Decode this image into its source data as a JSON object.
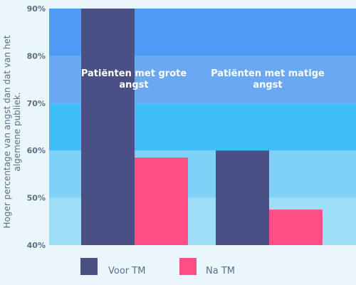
{
  "chart_data": {
    "type": "bar",
    "categories": [
      "Patiënten met grote angst",
      "Patiënten met matige angst"
    ],
    "category_lines": [
      [
        "Patiënten met grote",
        "angst"
      ],
      [
        "Patiënten met matige",
        "angst"
      ]
    ],
    "series": [
      {
        "name": "Voor TM",
        "values": [
          90,
          60
        ],
        "color": "#4a5083"
      },
      {
        "name": "Na TM",
        "values": [
          58.5,
          47.5
        ],
        "color": "#ff4d86"
      }
    ],
    "ylabel_lines": [
      "Hoger percentage van angst dan dat van het",
      "algemene publiek."
    ],
    "ylim": [
      40,
      90
    ],
    "yticks": [
      40,
      50,
      60,
      70,
      80,
      90
    ],
    "ytick_labels": [
      "40%",
      "50%",
      "60%",
      "70%",
      "80%",
      "90%"
    ],
    "band_colors": [
      "#9fdff6",
      "#7fd2f7",
      "#3dbef6",
      "#6aa8f1",
      "#4f9af2"
    ],
    "legend_position": "bottom",
    "background": "#eaf6fb"
  }
}
